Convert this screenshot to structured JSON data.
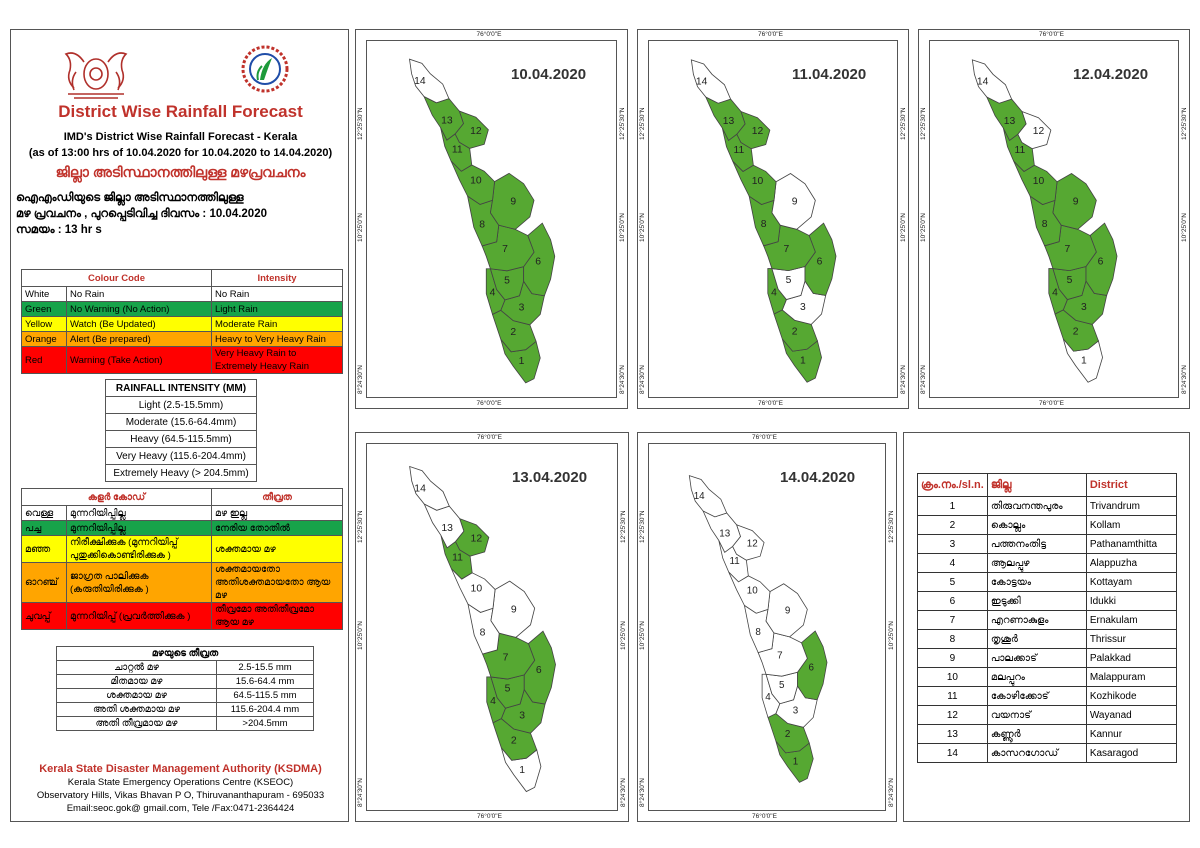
{
  "header": {
    "title": "District Wise Rainfall Forecast",
    "subtitle_lines": [
      "IMD's District Wise Rainfall Forecast - Kerala",
      "(as of 13:00 hrs of 10.04.2020  for 10.04.2020  to 14.04.2020)"
    ],
    "ml_heading": "ജില്ലാ അടിസ്ഥാനത്തിലുള്ള മഴപ്രവചനം",
    "ml_info_lines": [
      "ഐഎംഡിയുടെ ജില്ലാ അടിസ്ഥാനത്തിലുള്ള",
      "മഴ പ്രവചനം , പുറപ്പെടിവിച്ച ദിവസം : 10.04.2020",
      "സമയം : 13 hr s"
    ]
  },
  "colour_code_table": {
    "headers": [
      "Colour Code",
      "Intensity"
    ],
    "rows": [
      {
        "colour": "White",
        "code": "No Rain",
        "intensity": "No Rain",
        "bg": "#ffffff"
      },
      {
        "colour": "Green",
        "code": "No Warning (No Action)",
        "intensity": "Light Rain",
        "bg": "#17a34a"
      },
      {
        "colour": "Yellow",
        "code": "Watch (Be Updated)",
        "intensity": "Moderate Rain",
        "bg": "#ffff00"
      },
      {
        "colour": "Orange",
        "code": "Alert (Be prepared)",
        "intensity": "Heavy to Very Heavy Rain",
        "bg": "#ffa500"
      },
      {
        "colour": "Red",
        "code": "Warning (Take Action)",
        "intensity": "Very Heavy Rain to Extremely Heavy Rain",
        "bg": "#ff0000"
      }
    ]
  },
  "rainfall_intensity": {
    "title": "RAINFALL INTENSITY (MM)",
    "rows": [
      "Light (2.5-15.5mm)",
      "Moderate (15.6-64.4mm)",
      "Heavy (64.5-115.5mm)",
      "Very Heavy (115.6-204.4mm)",
      "Extremely Heavy (> 204.5mm)"
    ]
  },
  "ml_colour_table": {
    "headers": [
      "കളർ കോഡ്",
      "തീവ്രത"
    ],
    "rows": [
      {
        "colour": "വെള്ള",
        "code": "മുന്നറിയിപ്പില്ല",
        "intensity": "മഴ ഇല്ല",
        "bg": "#ffffff"
      },
      {
        "colour": "പച്ച",
        "code": "മുന്നറിയിപ്പില്ല",
        "intensity": "നേരിയ തോതിൽ",
        "bg": "#17a34a"
      },
      {
        "colour": "മഞ്ഞ",
        "code": "നിരീക്ഷിക്കുക (മുന്നറിയിപ്പ് പുതുക്കികൊണ്ടിരിക്കുക )",
        "intensity": "ശക്തമായ മഴ",
        "bg": "#ffff00"
      },
      {
        "colour": "ഓറഞ്ച്",
        "code": "ജാഗ്രത പാലിക്കുക (കരുതിയിരിക്കുക )",
        "intensity": "ശക്തമായതോ അതിശക്തമായതോ ആയ മഴ",
        "bg": "#ffa500"
      },
      {
        "colour": "ചുവപ്പ്",
        "code": "മുന്നറിയിപ്പ് (പ്രവർത്തിക്കുക )",
        "intensity": "തീവ്രമോ അതിതീവ്രമോ ആയ മഴ",
        "bg": "#ff0000"
      }
    ]
  },
  "ml_intensity": {
    "title": "മഴയുടെ തീവ്രത",
    "rows": [
      {
        "label": "ചാറ്റൽ മഴ",
        "range": "2.5-15.5 mm"
      },
      {
        "label": "മിതമായ മഴ",
        "range": "15.6-64.4 mm"
      },
      {
        "label": "ശക്തമായ മഴ",
        "range": "64.5-115.5 mm"
      },
      {
        "label": "അതി ശക്തമായ മഴ",
        "range": "115.6-204.4 mm"
      },
      {
        "label": "അതി തീവ്രമായ മഴ",
        "range": ">204.5mm"
      }
    ]
  },
  "footer": {
    "org": "Kerala State Disaster Management Authority (KSDMA)",
    "lines": [
      "Kerala State Emergency Operations Centre (KSEOC)",
      "Observatory Hills, Vikas Bhavan P O, Thiruvananthapuram - 695033",
      "Email:seoc.gok@ gmail.com, Tele /Fax:0471-2364424"
    ]
  },
  "map_labels": {
    "longitude": "76°0'0\"E",
    "lat_top": "12°25'30\"N",
    "lat_mid": "10°25'0\"N",
    "lat_bottom": "8°24'30\"N"
  },
  "colors": {
    "green": "#56a832",
    "white": "#ffffff",
    "border": "#555555"
  },
  "maps": [
    {
      "date": "10.04.2020",
      "green": [
        1,
        2,
        3,
        4,
        5,
        6,
        7,
        8,
        9,
        10,
        11,
        12,
        13
      ]
    },
    {
      "date": "11.04.2020",
      "green": [
        1,
        2,
        4,
        6,
        7,
        8,
        10,
        11,
        12,
        13
      ]
    },
    {
      "date": "12.04.2020",
      "green": [
        2,
        3,
        4,
        5,
        6,
        7,
        8,
        9,
        10,
        11,
        13
      ]
    },
    {
      "date": "13.04.2020",
      "green": [
        2,
        3,
        4,
        5,
        6,
        7,
        11,
        12
      ]
    },
    {
      "date": "14.04.2020",
      "green": [
        1,
        2,
        6
      ]
    }
  ],
  "district_table": {
    "headers": [
      "ക്രം.നം./sl.n.",
      "ജില്ല",
      "District"
    ],
    "rows": [
      [
        "1",
        "തിരുവനന്തപുരം",
        "Trivandrum"
      ],
      [
        "2",
        "കൊല്ലം",
        "Kollam"
      ],
      [
        "3",
        "പത്തനംതിട്ട",
        "Pathanamthitta"
      ],
      [
        "4",
        "ആലപ്പുഴ",
        "Alappuzha"
      ],
      [
        "5",
        "കോട്ടയം",
        "Kottayam"
      ],
      [
        "6",
        "ഇടുക്കി",
        "Idukki"
      ],
      [
        "7",
        "എറണാകുളം",
        "Ernakulam"
      ],
      [
        "8",
        "തൃശൂർ",
        "Thrissur"
      ],
      [
        "9",
        "പാലക്കാട്",
        "Palakkad"
      ],
      [
        "10",
        "മലപ്പുറം",
        "Malappuram"
      ],
      [
        "11",
        "കോഴിക്കോട്",
        "Kozhikode"
      ],
      [
        "12",
        "വയനാട്",
        "Wayanad"
      ],
      [
        "13",
        "കണ്ണൂർ",
        "Kannur"
      ],
      [
        "14",
        "കാസറഗോഡ്",
        "Kasaragod"
      ]
    ]
  }
}
